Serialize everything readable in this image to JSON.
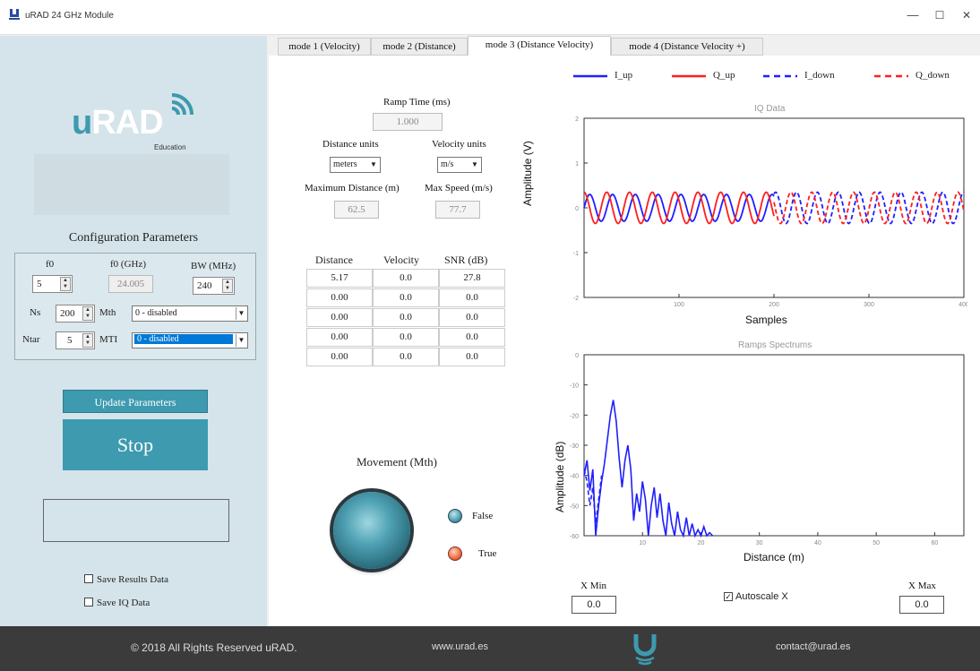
{
  "window": {
    "title": "uRAD 24 GHz Module",
    "minimize": "—",
    "maximize": "☐",
    "close": "✕"
  },
  "logo": {
    "brand": "uRAD",
    "sub": "Education"
  },
  "config": {
    "title": "Configuration Parameters",
    "f0_label": "f0",
    "f0_value": "5",
    "f0ghz_label": "f0 (GHz)",
    "f0ghz_value": "24.005",
    "bw_label": "BW (MHz)",
    "bw_value": "240",
    "ns_label": "Ns",
    "ns_value": "200",
    "mth_label": "Mth",
    "mth_value": "0 - disabled",
    "ntar_label": "Ntar",
    "ntar_value": "5",
    "mti_label": "MTI",
    "mti_value": "0 - disabled"
  },
  "buttons": {
    "update": "Update Parameters",
    "stop": "Stop"
  },
  "checks": {
    "save_results": "Save Results Data",
    "save_iq": "Save IQ Data"
  },
  "tabs": [
    {
      "label": "mode 1 (Velocity)"
    },
    {
      "label": "mode 2 (Distance)"
    },
    {
      "label": "mode 3 (Distance Velocity)",
      "active": true
    },
    {
      "label": "mode 4 (Distance Velocity +)"
    }
  ],
  "params": {
    "ramp_label": "Ramp Time (ms)",
    "ramp_value": "1.000",
    "dist_units_label": "Distance units",
    "dist_units_value": "meters",
    "vel_units_label": "Velocity units",
    "vel_units_value": "m/s",
    "max_dist_label": "Maximum Distance (m)",
    "max_dist_value": "62.5",
    "max_speed_label": "Max Speed (m/s)",
    "max_speed_value": "77.7"
  },
  "results": {
    "headers": [
      "Distance",
      "Velocity",
      "SNR (dB)"
    ],
    "rows": [
      [
        "5.17",
        "0.0",
        "27.8"
      ],
      [
        "0.00",
        "0.0",
        "0.0"
      ],
      [
        "0.00",
        "0.0",
        "0.0"
      ],
      [
        "0.00",
        "0.0",
        "0.0"
      ],
      [
        "0.00",
        "0.0",
        "0.0"
      ]
    ]
  },
  "movement": {
    "title": "Movement (Mth)",
    "false_label": "False",
    "true_label": "True"
  },
  "legend": [
    {
      "name": "I_up",
      "color": "#1f1fff",
      "style": "solid"
    },
    {
      "name": "Q_up",
      "color": "#ff1f1f",
      "style": "solid"
    },
    {
      "name": "I_down",
      "color": "#1f1fff",
      "style": "dashed"
    },
    {
      "name": "Q_down",
      "color": "#ff1f1f",
      "style": "dashed"
    }
  ],
  "chart_data": [
    {
      "type": "line",
      "title": "IQ Data",
      "xlabel": "Samples",
      "ylabel": "Amplitude (V)",
      "xlim": [
        0,
        400
      ],
      "ylim": [
        -2,
        2
      ],
      "xticks": [
        "100",
        "200",
        "300",
        "400"
      ],
      "yticks": [
        "2",
        "1",
        "0",
        "-1",
        "-2"
      ],
      "series": [
        {
          "name": "I_up",
          "samples_x": [
            0,
            200
          ],
          "amplitude": 0.3,
          "period": 24,
          "phase": 0
        },
        {
          "name": "Q_up",
          "samples_x": [
            0,
            200
          ],
          "amplitude": 0.35,
          "period": 24,
          "phase": 1.6
        },
        {
          "name": "I_down",
          "samples_x": [
            200,
            400
          ],
          "amplitude": 0.35,
          "period": 22,
          "phase": 0.5
        },
        {
          "name": "Q_down",
          "samples_x": [
            200,
            400
          ],
          "amplitude": 0.35,
          "period": 22,
          "phase": 2.2
        }
      ]
    },
    {
      "type": "line",
      "title": "Ramps Spectrums",
      "xlabel": "Distance (m)",
      "ylabel": "Amplitude (dB)",
      "xlim": [
        0,
        65
      ],
      "ylim": [
        -60,
        0
      ],
      "xticks": [
        "10",
        "20",
        "30",
        "40",
        "50",
        "60"
      ],
      "yticks": [
        "0",
        "-10",
        "-20",
        "-30",
        "-40",
        "-50",
        "-60"
      ],
      "series": [
        {
          "name": "I_up",
          "x": [
            0,
            0.5,
            1,
            1.5,
            2,
            2.5,
            3,
            3.5,
            4,
            4.5,
            5,
            5.5,
            6,
            6.5,
            7,
            7.5,
            8,
            8.5,
            9,
            9.5,
            10,
            10.5,
            11,
            11.5,
            12,
            12.5,
            13,
            13.5,
            14,
            14.5,
            15,
            15.5,
            16,
            16.5,
            17,
            17.5,
            18,
            18.5,
            19,
            19.5,
            20,
            20.5,
            21,
            21.5,
            22
          ],
          "y": [
            -40,
            -35,
            -45,
            -38,
            -60,
            -50,
            -42,
            -36,
            -28,
            -20,
            -15,
            -22,
            -34,
            -44,
            -35,
            -30,
            -38,
            -55,
            -46,
            -52,
            -42,
            -48,
            -60,
            -50,
            -44,
            -54,
            -46,
            -55,
            -60,
            -49,
            -56,
            -60,
            -52,
            -58,
            -60,
            -54,
            -60,
            -56,
            -60,
            -58,
            -60,
            -57,
            -60,
            -59,
            -60
          ]
        },
        {
          "name": "I_down",
          "x": [
            0,
            0.5,
            1,
            1.5,
            2,
            2.5,
            3
          ],
          "y": [
            -38,
            -42,
            -50,
            -44,
            -56,
            -48,
            -40
          ]
        }
      ]
    }
  ],
  "xrange": {
    "xmin_label": "X Min",
    "xmin_value": "0.0",
    "autoscale_label": "Autoscale X",
    "xmax_label": "X Max",
    "xmax_value": "0.0"
  },
  "footer": {
    "copyright": "© 2018 All Rights Reserved uRAD.",
    "website": "www.urad.es",
    "contact": "contact@urad.es"
  }
}
